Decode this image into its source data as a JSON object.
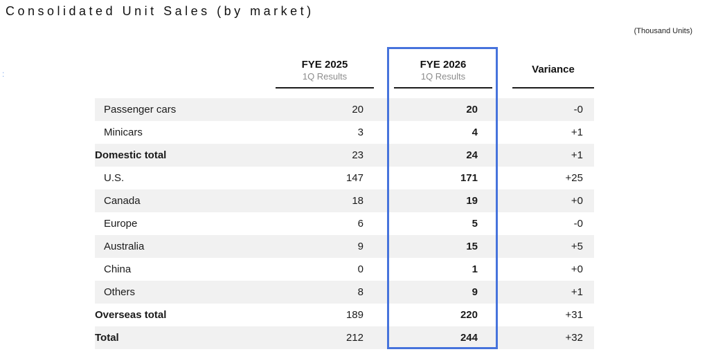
{
  "title": "Consolidated Unit Sales (by market)",
  "units_note": "(Thousand Units)",
  "decoration": {
    "left_mark": ":"
  },
  "colors": {
    "highlight_border_blue": "#4673dc",
    "row_alt_gray": "#f1f1f1",
    "subheader_gray": "#8c8c8c",
    "text_black": "#111111"
  },
  "table": {
    "columns": [
      {
        "label": "FYE 2025",
        "sublabel": "1Q Results",
        "highlighted": false
      },
      {
        "label": "FYE 2026",
        "sublabel": "1Q Results",
        "highlighted": true
      },
      {
        "label": "Variance",
        "sublabel": "",
        "highlighted": false
      }
    ],
    "rows": [
      {
        "label": "Passenger cars",
        "fye2025": "20",
        "fye2026": "20",
        "variance": "-0",
        "bold": false,
        "indent": true
      },
      {
        "label": "Minicars",
        "fye2025": "3",
        "fye2026": "4",
        "variance": "+1",
        "bold": false,
        "indent": true
      },
      {
        "label": "Domestic total",
        "fye2025": "23",
        "fye2026": "24",
        "variance": "+1",
        "bold": true,
        "indent": false
      },
      {
        "label": "U.S.",
        "fye2025": "147",
        "fye2026": "171",
        "variance": "+25",
        "bold": false,
        "indent": true
      },
      {
        "label": "Canada",
        "fye2025": "18",
        "fye2026": "19",
        "variance": "+0",
        "bold": false,
        "indent": true
      },
      {
        "label": "Europe",
        "fye2025": "6",
        "fye2026": "5",
        "variance": "-0",
        "bold": false,
        "indent": true
      },
      {
        "label": "Australia",
        "fye2025": "9",
        "fye2026": "15",
        "variance": "+5",
        "bold": false,
        "indent": true
      },
      {
        "label": "China",
        "fye2025": "0",
        "fye2026": "1",
        "variance": "+0",
        "bold": false,
        "indent": true
      },
      {
        "label": "Others",
        "fye2025": "8",
        "fye2026": "9",
        "variance": "+1",
        "bold": false,
        "indent": true
      },
      {
        "label": "Overseas total",
        "fye2025": "189",
        "fye2026": "220",
        "variance": "+31",
        "bold": true,
        "indent": false
      },
      {
        "label": "Total",
        "fye2025": "212",
        "fye2026": "244",
        "variance": "+32",
        "bold": true,
        "indent": false
      }
    ]
  }
}
